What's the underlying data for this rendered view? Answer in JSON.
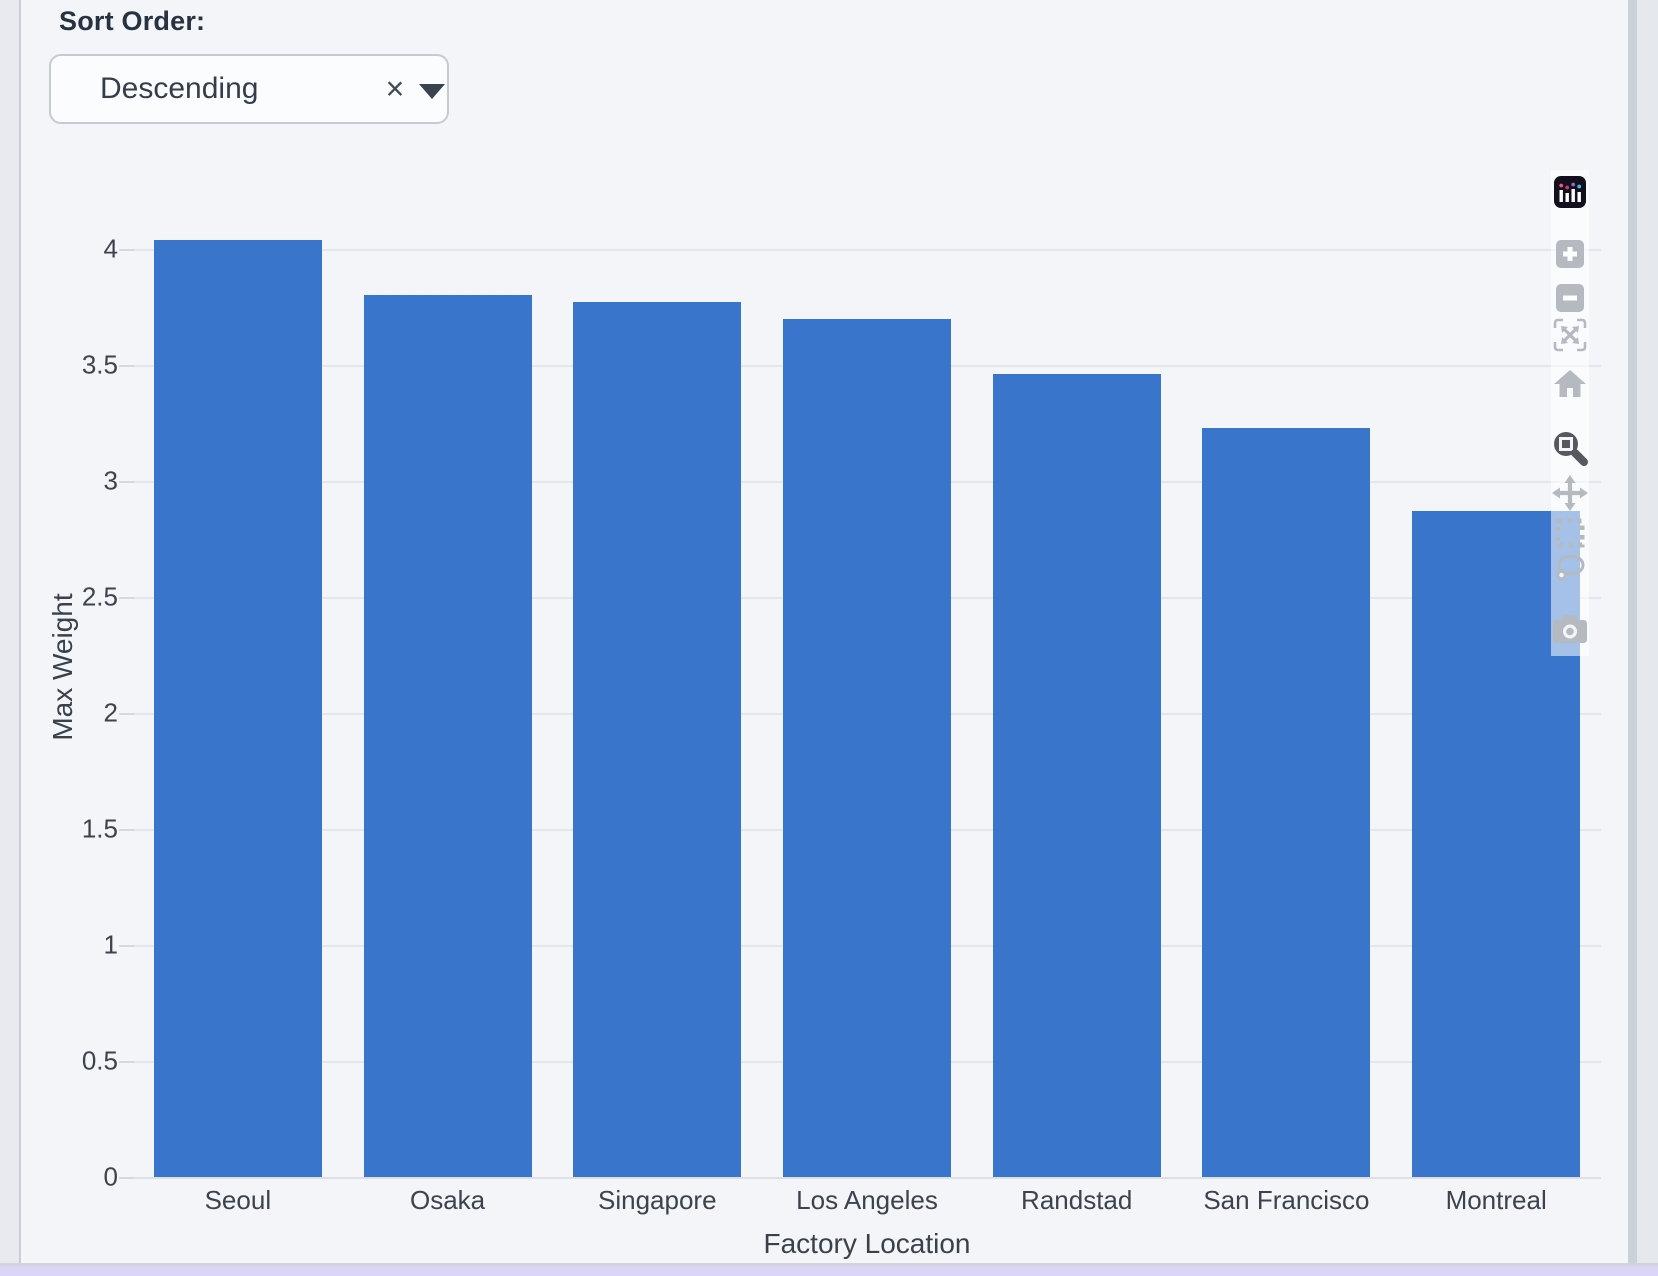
{
  "controls": {
    "sort_label": "Sort Order:",
    "sort_value": "Descending",
    "clear_icon": "×"
  },
  "chart_data": {
    "type": "bar",
    "categories": [
      "Seoul",
      "Osaka",
      "Singapore",
      "Los Angeles",
      "Randstad",
      "San Francisco",
      "Montreal"
    ],
    "values": [
      4.04,
      3.8,
      3.77,
      3.7,
      3.46,
      3.23,
      2.87
    ],
    "title": "",
    "xlabel": "Factory Location",
    "ylabel": "Max Weight",
    "ylim": [
      0,
      4.15
    ],
    "yticks": [
      0,
      0.5,
      1,
      1.5,
      2,
      2.5,
      3,
      3.5,
      4
    ],
    "grid": true,
    "legend": false,
    "bar_color": "#3a75cc",
    "orientation": "vertical"
  },
  "modebar": {
    "icons": [
      "plotly-logo-icon",
      "zoom-in-icon",
      "zoom-out-icon",
      "autoscale-icon",
      "reset-axes-home-icon",
      "box-zoom-icon",
      "pan-icon",
      "box-select-icon",
      "lasso-select-icon",
      "download-camera-icon"
    ],
    "active_tool": "box-zoom"
  },
  "colors": {
    "bar": "#3a75cc",
    "panel_bg": "#f3f5f8",
    "page_bg": "#e8eaef",
    "gridline": "#e3e6ea",
    "text": "#3b434c",
    "bottom_strip": "#dbd5f8",
    "modebar_inactive": "#b5bac1",
    "modebar_active": "#55595e"
  }
}
